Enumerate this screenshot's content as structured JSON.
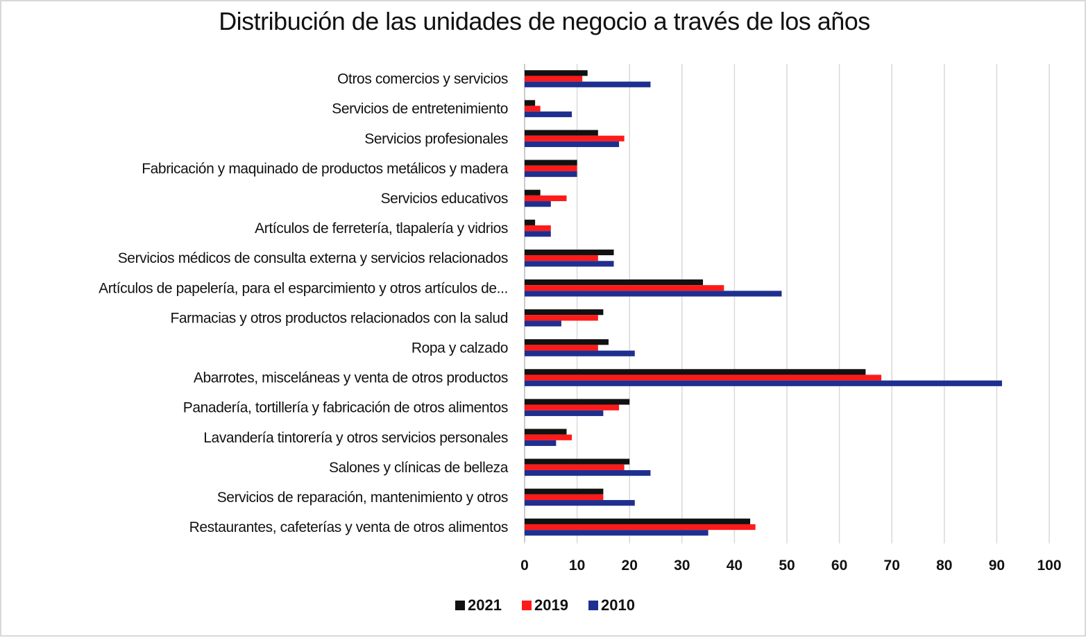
{
  "chart_data": {
    "type": "bar",
    "orientation": "horizontal",
    "title": "Distribución de las unidades de negocio a través de los años",
    "xlabel": "",
    "ylabel": "",
    "xlim": [
      0,
      100
    ],
    "xticks": [
      "0",
      "10",
      "20",
      "30",
      "40",
      "50",
      "60",
      "70",
      "80",
      "90",
      "100"
    ],
    "grid": true,
    "legend_position": "bottom",
    "categories": [
      "Otros comercios y servicios",
      "Servicios de entretenimiento",
      "Servicios profesionales",
      "Fabricación y maquinado de productos metálicos y madera",
      "Servicios educativos",
      "Artículos de ferretería, tlapalería y vidrios",
      "Servicios médicos de consulta externa y servicios relacionados",
      "Artículos de papelería, para el esparcimiento y otros artículos de...",
      "Farmacias y otros productos relacionados con la salud",
      "Ropa y calzado",
      "Abarrotes, misceláneas y venta de otros productos",
      "Panadería, tortillería y fabricación de otros alimentos",
      "Lavandería tintorería y otros servicios personales",
      "Salones y clínicas de belleza",
      "Servicios de reparación, mantenimiento y otros",
      "Restaurantes, cafeterías y venta de otros alimentos"
    ],
    "series": [
      {
        "name": "2021",
        "color": "#111111",
        "values": [
          12,
          2,
          14,
          10,
          3,
          2,
          17,
          34,
          15,
          16,
          65,
          20,
          8,
          20,
          15,
          43
        ]
      },
      {
        "name": "2019",
        "color": "#ff1a1a",
        "values": [
          11,
          3,
          19,
          10,
          8,
          5,
          14,
          38,
          14,
          14,
          68,
          18,
          9,
          19,
          15,
          44
        ]
      },
      {
        "name": "2010",
        "color": "#1f2f8f",
        "values": [
          24,
          9,
          18,
          10,
          5,
          5,
          17,
          49,
          7,
          21,
          91,
          15,
          6,
          24,
          21,
          35
        ]
      }
    ]
  }
}
